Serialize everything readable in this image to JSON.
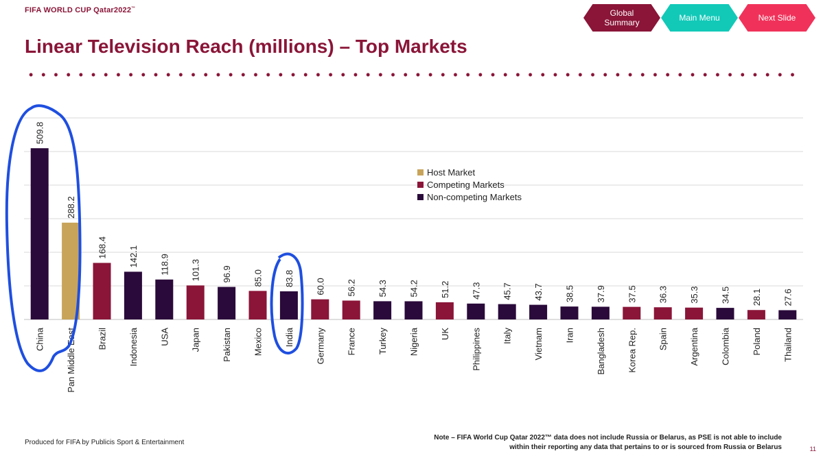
{
  "header": {
    "brand": "FIFA WORLD CUP Qatar2022",
    "brand_tm": "™",
    "nav": {
      "global_summary": "Global Summary",
      "main_menu": "Main Menu",
      "next_slide": "Next Slide"
    }
  },
  "page_title": "Linear Television Reach (millions) – Top Markets",
  "colors": {
    "host": "#c8a45a",
    "competing": "#8a1538",
    "non_competing": "#2a0a3a",
    "annotation": "#1f4fe0",
    "accent": "#8a1538"
  },
  "chart_data": {
    "type": "bar",
    "title": "Linear Television Reach (millions) – Top Markets",
    "xlabel": "",
    "ylabel": "",
    "grid": true,
    "legend_position": "center-right",
    "ylim": [
      0,
      600
    ],
    "categories": [
      "China",
      "Pan Middle East",
      "Brazil",
      "Indonesia",
      "USA",
      "Japan",
      "Pakistan",
      "Mexico",
      "India",
      "Germany",
      "France",
      "Turkey",
      "Nigeria",
      "UK",
      "Philippines",
      "Italy",
      "Vietnam",
      "Iran",
      "Bangladesh",
      "Korea Rep.",
      "Spain",
      "Argentina",
      "Colombia",
      "Poland",
      "Thailand"
    ],
    "values": [
      509.8,
      288.2,
      168.4,
      142.1,
      118.9,
      101.3,
      96.9,
      85.0,
      83.8,
      60.0,
      56.2,
      54.3,
      54.2,
      51.2,
      47.3,
      45.7,
      43.7,
      38.5,
      37.9,
      37.5,
      36.3,
      35.3,
      34.5,
      28.1,
      27.6
    ],
    "value_labels": [
      "509.8",
      "288.2",
      "168.4",
      "142.1",
      "118.9",
      "101.3",
      "96.9",
      "85.0",
      "83.8",
      "60.0",
      "56.2",
      "54.3",
      "54.2",
      "51.2",
      "47.3",
      "45.7",
      "43.7",
      "38.5",
      "37.9",
      "37.5",
      "36.3",
      "35.3",
      "34.5",
      "28.1",
      "27.6"
    ],
    "market_type": [
      "non_competing",
      "host",
      "competing",
      "non_competing",
      "non_competing",
      "competing",
      "non_competing",
      "competing",
      "non_competing",
      "competing",
      "competing",
      "non_competing",
      "non_competing",
      "competing",
      "non_competing",
      "non_competing",
      "non_competing",
      "non_competing",
      "non_competing",
      "competing",
      "competing",
      "competing",
      "non_competing",
      "competing",
      "non_competing"
    ],
    "legend": [
      {
        "key": "host",
        "label": "Host Market"
      },
      {
        "key": "competing",
        "label": "Competing Markets"
      },
      {
        "key": "non_competing",
        "label": "Non-competing Markets"
      }
    ],
    "annotations": [
      "circle around China and Pan Middle East",
      "circle around India"
    ]
  },
  "footer": {
    "produced_by": "Produced for FIFA by Publicis Sport & Entertainment",
    "note_line1": "Note – FIFA World Cup Qatar 2022™ data does  not include Russia or Belarus, as PSE is not able to include",
    "note_line2": "within their reporting any data that pertains to or is sourced from Russia or Belarus",
    "page_number": "11"
  }
}
